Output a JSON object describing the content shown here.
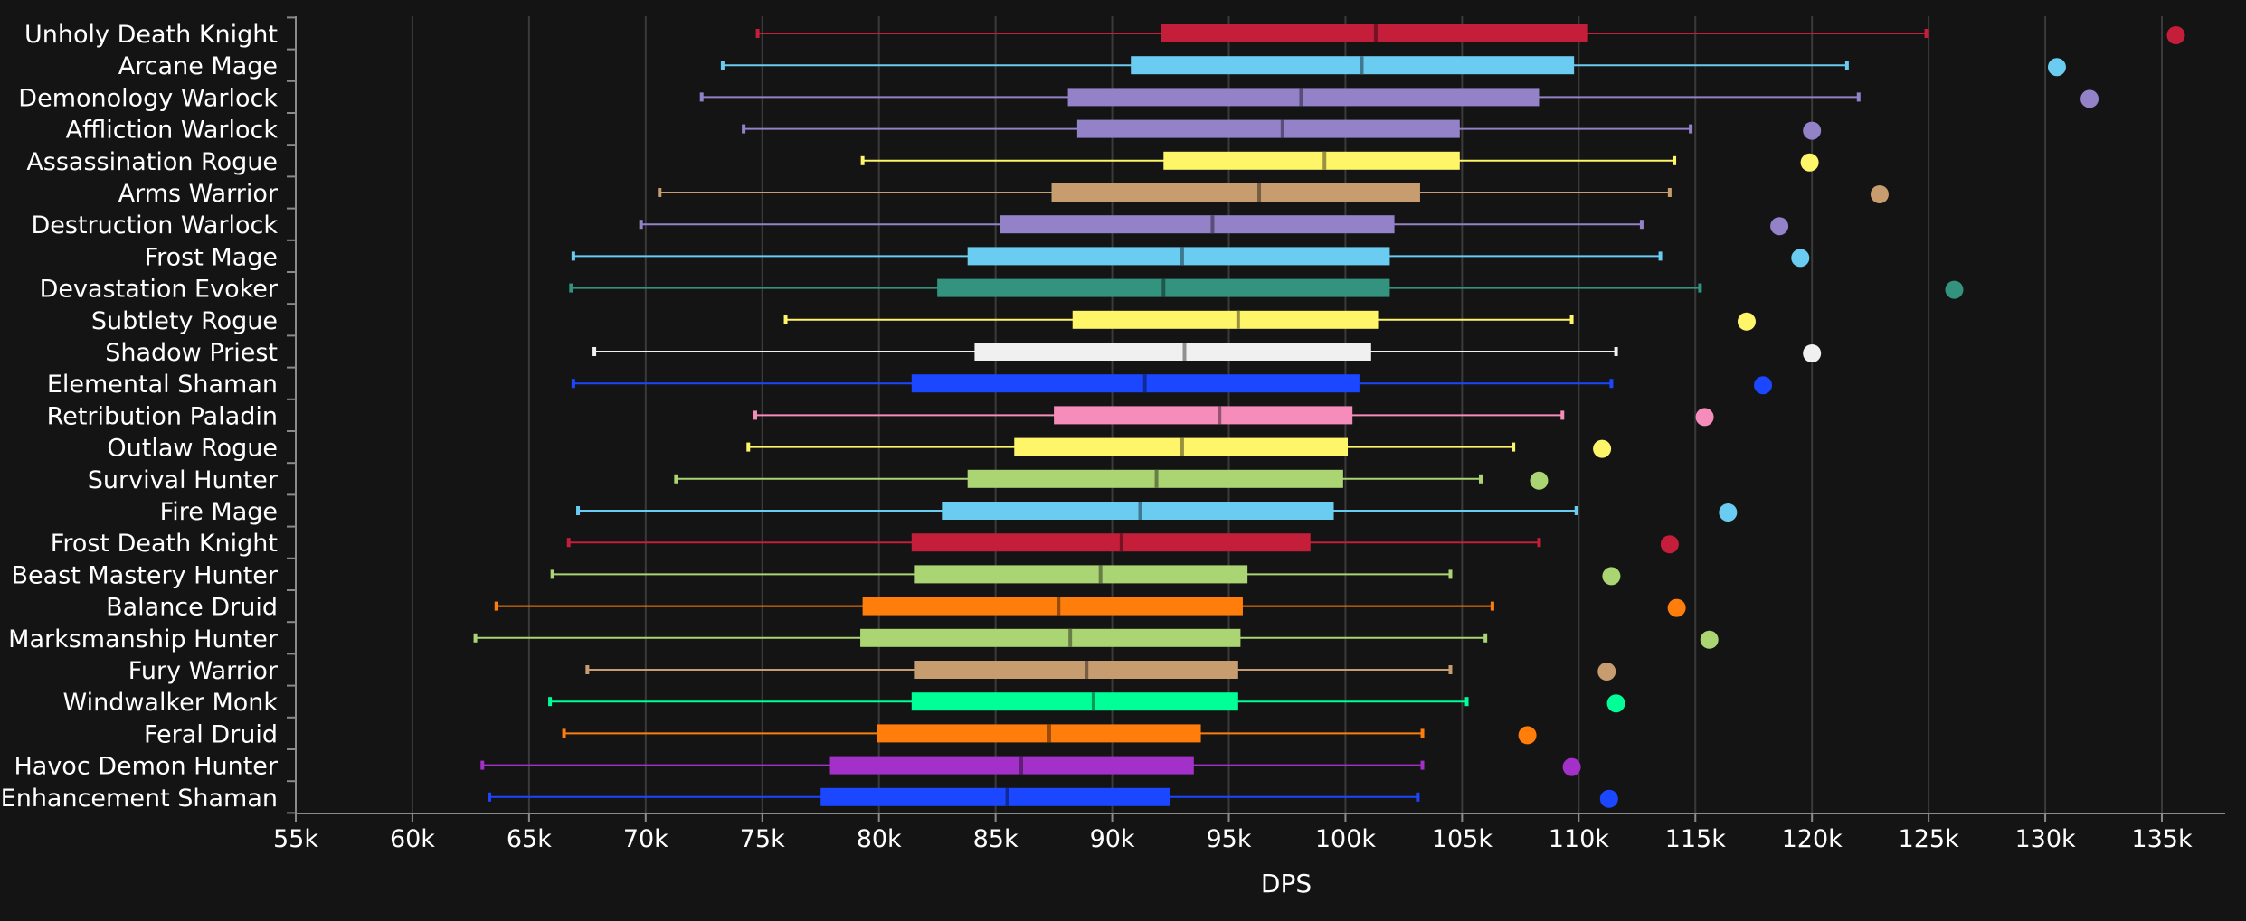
{
  "chart_data": {
    "type": "boxplot",
    "xlabel": "DPS",
    "xlim": [
      55000,
      137000
    ],
    "x_ticks": [
      55000,
      60000,
      65000,
      70000,
      75000,
      80000,
      85000,
      90000,
      95000,
      100000,
      105000,
      110000,
      115000,
      120000,
      125000,
      130000,
      135000
    ],
    "x_tick_labels": [
      "55k",
      "60k",
      "65k",
      "70k",
      "75k",
      "80k",
      "85k",
      "90k",
      "95k",
      "100k",
      "105k",
      "110k",
      "115k",
      "120k",
      "125k",
      "130k",
      "135k"
    ],
    "grid": true,
    "colors": {
      "background": "#141414",
      "grid": "#3a3a3a",
      "text": "#ffffff"
    },
    "series": [
      {
        "name": "Unholy Death Knight",
        "color": "#C41E3A",
        "min": 74800,
        "q1": 92100,
        "median": 101300,
        "q3": 110400,
        "max": 124900,
        "outlier": 135600
      },
      {
        "name": "Arcane Mage",
        "color": "#69CCF0",
        "min": 73300,
        "q1": 90800,
        "median": 100700,
        "q3": 109800,
        "max": 121500,
        "outlier": 130500
      },
      {
        "name": "Demonology Warlock",
        "color": "#9482C9",
        "min": 72400,
        "q1": 88100,
        "median": 98100,
        "q3": 108300,
        "max": 122000,
        "outlier": 131900
      },
      {
        "name": "Affliction Warlock",
        "color": "#9482C9",
        "min": 74200,
        "q1": 88500,
        "median": 97300,
        "q3": 104900,
        "max": 114800,
        "outlier": 120000
      },
      {
        "name": "Assassination Rogue",
        "color": "#FFF569",
        "min": 79300,
        "q1": 92200,
        "median": 99100,
        "q3": 104900,
        "max": 114100,
        "outlier": 119900
      },
      {
        "name": "Arms Warrior",
        "color": "#C79C6E",
        "min": 70600,
        "q1": 87400,
        "median": 96300,
        "q3": 103200,
        "max": 113900,
        "outlier": 122900
      },
      {
        "name": "Destruction Warlock",
        "color": "#9482C9",
        "min": 69800,
        "q1": 85200,
        "median": 94300,
        "q3": 102100,
        "max": 112700,
        "outlier": 118600
      },
      {
        "name": "Frost Mage",
        "color": "#69CCF0",
        "min": 66900,
        "q1": 83800,
        "median": 93000,
        "q3": 101900,
        "max": 113500,
        "outlier": 119500
      },
      {
        "name": "Devastation Evoker",
        "color": "#33937F",
        "min": 66800,
        "q1": 82500,
        "median": 92200,
        "q3": 101900,
        "max": 115200,
        "outlier": 126100
      },
      {
        "name": "Subtlety Rogue",
        "color": "#FFF569",
        "min": 76000,
        "q1": 88300,
        "median": 95400,
        "q3": 101400,
        "max": 109700,
        "outlier": 117200
      },
      {
        "name": "Shadow Priest",
        "color": "#F0F0F0",
        "min": 67800,
        "q1": 84100,
        "median": 93100,
        "q3": 101100,
        "max": 111600,
        "outlier": 120000
      },
      {
        "name": "Elemental Shaman",
        "color": "#1A47FF",
        "min": 66900,
        "q1": 81400,
        "median": 91400,
        "q3": 100600,
        "max": 111400,
        "outlier": 117900
      },
      {
        "name": "Retribution Paladin",
        "color": "#F58CBA",
        "min": 74700,
        "q1": 87500,
        "median": 94600,
        "q3": 100300,
        "max": 109300,
        "outlier": 115400
      },
      {
        "name": "Outlaw Rogue",
        "color": "#FFF569",
        "min": 74400,
        "q1": 85800,
        "median": 93000,
        "q3": 100100,
        "max": 107200,
        "outlier": 111000
      },
      {
        "name": "Survival Hunter",
        "color": "#ABD473",
        "min": 71300,
        "q1": 83800,
        "median": 91900,
        "q3": 99900,
        "max": 105800,
        "outlier": 108300
      },
      {
        "name": "Fire Mage",
        "color": "#69CCF0",
        "min": 67100,
        "q1": 82700,
        "median": 91200,
        "q3": 99500,
        "max": 109900,
        "outlier": 116400
      },
      {
        "name": "Frost Death Knight",
        "color": "#C41E3A",
        "min": 66700,
        "q1": 81400,
        "median": 90400,
        "q3": 98500,
        "max": 108300,
        "outlier": 113900
      },
      {
        "name": "Beast Mastery Hunter",
        "color": "#ABD473",
        "min": 66000,
        "q1": 81500,
        "median": 89500,
        "q3": 95800,
        "max": 104500,
        "outlier": 111400
      },
      {
        "name": "Balance Druid",
        "color": "#FF7D0A",
        "min": 63600,
        "q1": 79300,
        "median": 87700,
        "q3": 95600,
        "max": 106300,
        "outlier": 114200
      },
      {
        "name": "Marksmanship Hunter",
        "color": "#ABD473",
        "min": 62700,
        "q1": 79200,
        "median": 88200,
        "q3": 95500,
        "max": 106000,
        "outlier": 115600
      },
      {
        "name": "Fury Warrior",
        "color": "#C79C6E",
        "min": 67500,
        "q1": 81500,
        "median": 88900,
        "q3": 95400,
        "max": 104500,
        "outlier": 111200
      },
      {
        "name": "Windwalker Monk",
        "color": "#00FF96",
        "min": 65900,
        "q1": 81400,
        "median": 89200,
        "q3": 95400,
        "max": 105200,
        "outlier": 111600
      },
      {
        "name": "Feral Druid",
        "color": "#FF7D0A",
        "min": 66500,
        "q1": 79900,
        "median": 87300,
        "q3": 93800,
        "max": 103300,
        "outlier": 107800
      },
      {
        "name": "Havoc Demon Hunter",
        "color": "#A330C9",
        "min": 63000,
        "q1": 77900,
        "median": 86100,
        "q3": 93500,
        "max": 103300,
        "outlier": 109700
      },
      {
        "name": "Enhancement Shaman",
        "color": "#1A47FF",
        "min": 63300,
        "q1": 77500,
        "median": 85500,
        "q3": 92500,
        "max": 103100,
        "outlier": 111300
      }
    ]
  }
}
